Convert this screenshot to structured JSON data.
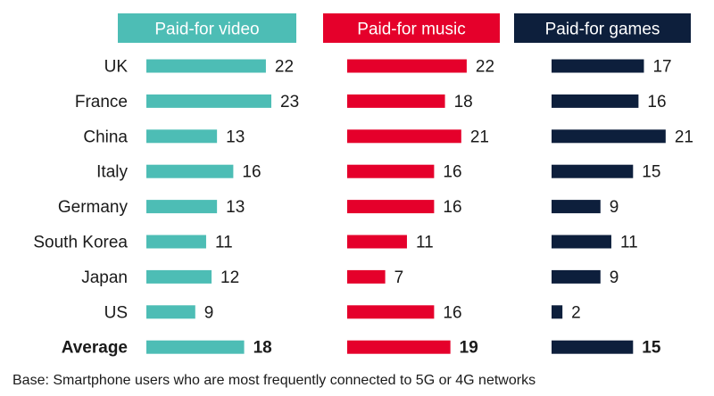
{
  "chart_data": {
    "type": "bar",
    "orientation": "horizontal",
    "categories": [
      "UK",
      "France",
      "China",
      "Italy",
      "Germany",
      "South Korea",
      "Japan",
      "US",
      "Average"
    ],
    "highlight_category": "Average",
    "series": [
      {
        "name": "Paid-for video",
        "color": "#4dbdb5",
        "values": [
          22,
          23,
          13,
          16,
          13,
          11,
          12,
          9,
          18
        ]
      },
      {
        "name": "Paid-for music",
        "color": "#e5002b",
        "values": [
          22,
          18,
          21,
          16,
          16,
          11,
          7,
          16,
          19
        ]
      },
      {
        "name": "Paid-for games",
        "color": "#0d1f3c",
        "values": [
          17,
          16,
          21,
          15,
          9,
          11,
          9,
          2,
          15
        ]
      }
    ],
    "grid": false,
    "footnote": "Base: Smartphone users who are most frequently connected to 5G or 4G networks"
  }
}
